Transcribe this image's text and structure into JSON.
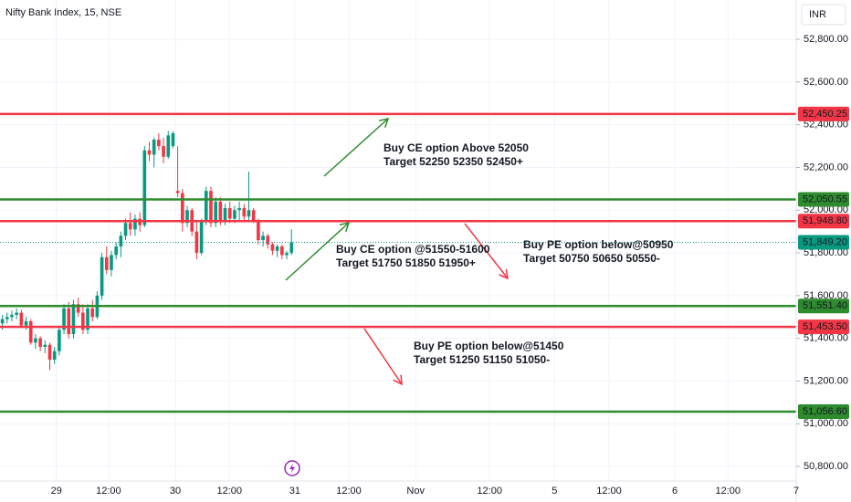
{
  "chart_data": {
    "type": "candlestick",
    "title": "Nifty Bank Index, 15, NSE",
    "currency": "INR",
    "up_color": "#089981",
    "down_color": "#f23645",
    "ylim": [
      50732,
      52984
    ],
    "yticks": [
      {
        "value": 52800,
        "label": "52,800.00"
      },
      {
        "value": 52600,
        "label": "52,600.00"
      },
      {
        "value": 52400,
        "label": "52,400.00"
      },
      {
        "value": 52200,
        "label": "52,200.00"
      },
      {
        "value": 52000,
        "label": "52,000.00"
      },
      {
        "value": 51800,
        "label": "51,800.00"
      },
      {
        "value": 51600,
        "label": "51,600.00"
      },
      {
        "value": 51400,
        "label": "51,400.00"
      },
      {
        "value": 51200,
        "label": "51,200.00"
      },
      {
        "value": 51000,
        "label": "51,000.00"
      },
      {
        "value": 50800,
        "label": "50,800.00"
      }
    ],
    "xlim": [
      0,
      168
    ],
    "xticks": [
      {
        "value": 11.9,
        "label": "29"
      },
      {
        "value": 22.9,
        "label": "12:00"
      },
      {
        "value": 37.0,
        "label": "30"
      },
      {
        "value": 48.4,
        "label": "12:00"
      },
      {
        "value": 62.2,
        "label": "31"
      },
      {
        "value": 73.6,
        "label": "12:00"
      },
      {
        "value": 87.7,
        "label": "Nov"
      },
      {
        "value": 103.3,
        "label": "12:00"
      },
      {
        "value": 117.0,
        "label": "5"
      },
      {
        "value": 128.5,
        "label": "12:00"
      },
      {
        "value": 142.4,
        "label": "6"
      },
      {
        "value": 153.6,
        "label": "12:00"
      },
      {
        "value": 168,
        "label": "7"
      }
    ],
    "open": [
      51470,
      51490,
      51500,
      51510,
      51520,
      51460,
      51480,
      51380,
      51400,
      51360,
      51370,
      51300,
      51340,
      51440,
      51540,
      51420,
      51560,
      51520,
      51440,
      51540,
      51500,
      51600,
      51780,
      51720,
      51790,
      51830,
      51880,
      51940,
      51910,
      51960,
      51930,
      52280,
      52260,
      52330,
      52300,
      52250,
      52300,
      52090,
      52080,
      51940,
      52000,
      51900,
      51800,
      51950,
      52090,
      51940,
      52040,
      51950,
      52010,
      51960,
      52000,
      52010,
      51970,
      52000,
      51950,
      51860,
      51880,
      51840,
      51810,
      51830,
      51790,
      51800
    ],
    "high": [
      51510,
      51520,
      51530,
      51540,
      51535,
      51500,
      51490,
      51420,
      51410,
      51390,
      51380,
      51360,
      51460,
      51560,
      51570,
      51580,
      51590,
      51560,
      51560,
      51580,
      51620,
      51800,
      51830,
      51810,
      51850,
      51900,
      51960,
      51990,
      51980,
      51990,
      52300,
      52320,
      52340,
      52360,
      52340,
      52370,
      52370,
      52300,
      52100,
      52020,
      52010,
      51950,
      51960,
      52110,
      52110,
      52060,
      52060,
      52030,
      52040,
      52020,
      52040,
      52030,
      52180,
      52010,
      51960,
      51900,
      51890,
      51850,
      51840,
      51840,
      51810,
      51910
    ],
    "low": [
      51440,
      51470,
      51480,
      51490,
      51450,
      51440,
      51370,
      51350,
      51340,
      51330,
      51250,
      51280,
      51320,
      51420,
      51400,
      51400,
      51500,
      51420,
      51420,
      51480,
      51490,
      51580,
      51700,
      51690,
      51770,
      51780,
      51860,
      51880,
      51880,
      51900,
      51920,
      52230,
      52200,
      52280,
      52220,
      52240,
      52290,
      52060,
      51900,
      51920,
      51880,
      51770,
      51790,
      51930,
      51920,
      51920,
      51930,
      51930,
      51940,
      51940,
      51950,
      51950,
      51950,
      51940,
      51840,
      51830,
      51820,
      51790,
      51780,
      51770,
      51770,
      51790
    ],
    "close": [
      51490,
      51500,
      51510,
      51520,
      51460,
      51480,
      51380,
      51400,
      51360,
      51370,
      51300,
      51340,
      51440,
      51540,
      51420,
      51560,
      51520,
      51440,
      51540,
      51500,
      51600,
      51780,
      51720,
      51790,
      51830,
      51880,
      51940,
      51910,
      51960,
      51930,
      52280,
      52260,
      52330,
      52300,
      52250,
      52350,
      52360,
      52080,
      51940,
      52000,
      51900,
      51800,
      51950,
      52090,
      51940,
      52040,
      51950,
      52010,
      51960,
      52000,
      52010,
      51970,
      52000,
      51950,
      51860,
      51880,
      51840,
      51810,
      51830,
      51790,
      51800,
      51849.2
    ],
    "current_price": {
      "value": 51849.2,
      "label": "51,849.20",
      "color": "#089981"
    },
    "levels": [
      {
        "value": 52450.25,
        "label": "52,450.25",
        "color": "#f23645"
      },
      {
        "value": 52050.55,
        "label": "52,050.55",
        "color": "#2e8b2e"
      },
      {
        "value": 51948.8,
        "label": "51,948.80",
        "color": "#f23645"
      },
      {
        "value": 51551.4,
        "label": "51,551.40",
        "color": "#2e8b2e"
      },
      {
        "value": 51453.5,
        "label": "51,453.50",
        "color": "#f23645"
      },
      {
        "value": 51056.6,
        "label": "51,056.60",
        "color": "#2e8b2e"
      }
    ],
    "annotations": [
      {
        "lines": [
          "Buy CE option Above 52050",
          "Target 52250 52350 52450+"
        ],
        "color": "#2e8b2e"
      },
      {
        "lines": [
          "Buy CE option @51550-51600",
          "Target 51750 51850 51950+"
        ],
        "color": "#2e8b2e"
      },
      {
        "lines": [
          "Buy PE option below@50950",
          "Target 50750 50650 50550-"
        ],
        "color": "#f23645"
      },
      {
        "lines": [
          "Buy PE option below@51450",
          "Target 51250 51150 51050-"
        ],
        "color": "#f23645"
      }
    ]
  }
}
